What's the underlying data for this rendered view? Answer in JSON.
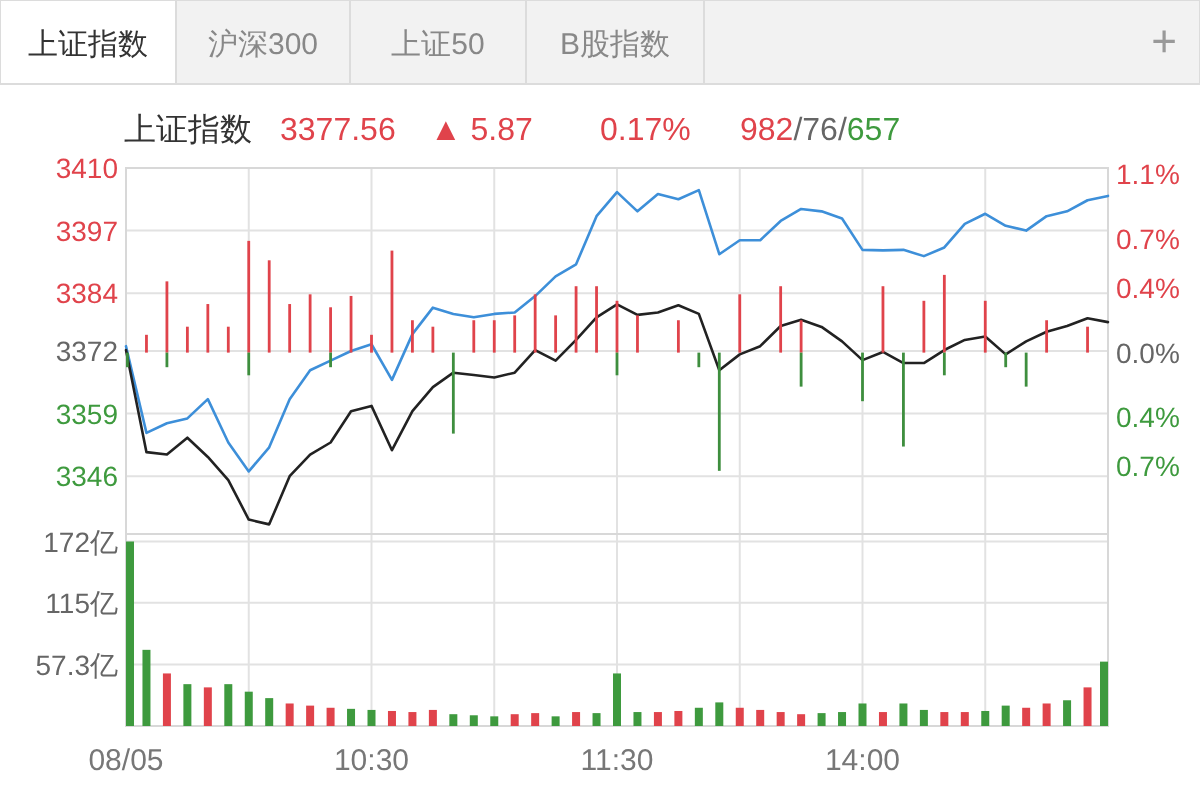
{
  "chart_data": [
    {
      "type": "line",
      "title": "上证指数",
      "annotations": [
        "上证指数",
        "沪深300",
        "上证50",
        "B股指数",
        "+",
        "3377.56",
        "▲ 5.87",
        "0.17%",
        "982/76/657"
      ],
      "categories": [
        null,
        null,
        null,
        null,
        null,
        null,
        null,
        null,
        null,
        null,
        null,
        null,
        null,
        null,
        null,
        null,
        null,
        null,
        null,
        null,
        null,
        null,
        null,
        null,
        null,
        null,
        null,
        null,
        null,
        null,
        null,
        null,
        null,
        null,
        null,
        null,
        null,
        null,
        null,
        null,
        null,
        null,
        null,
        null,
        null,
        null,
        null,
        null,
        null
      ],
      "ylim": [
        3334,
        3410
      ],
      "yticks": [
        3410,
        3397,
        3384,
        3372,
        3359,
        3346
      ],
      "y2lim": [
        -1.12,
        1.14
      ],
      "y2ticks": [
        {
          "value": 1.1,
          "label": "1.1%"
        },
        {
          "value": 0.7,
          "label": "0.7%"
        },
        {
          "value": 0.4,
          "label": "0.4%"
        },
        {
          "value": 0,
          "label": "0.0%"
        },
        {
          "value": -0.4,
          "label": "0.4%"
        },
        {
          "value": -0.7,
          "label": "0.7%"
        }
      ],
      "grid": true,
      "tick_labels": "y",
      "series": [
        {
          "type": "bar",
          "axis": "y2",
          "color": "#e0434b",
          "values": [
            null,
            0.11,
            0.44,
            0.16,
            0.3,
            0.16,
            0.69,
            0.57,
            0.3,
            0.36,
            0.28,
            0.35,
            0.11,
            0.63,
            0.2,
            0.16,
            null,
            0.2,
            0.2,
            0.23,
            0.36,
            0.23,
            0.41,
            0.41,
            0.32,
            0.23,
            null,
            0.2,
            null,
            null,
            0.36,
            null,
            0.41,
            0.2,
            null,
            null,
            null,
            0.41,
            null,
            0.32,
            0.48,
            null,
            0.32,
            null,
            null,
            0.2,
            null,
            0.16,
            null
          ]
        },
        {
          "type": "bar",
          "axis": "y2",
          "color": "#3e8e3e",
          "values": [
            -0.09,
            null,
            -0.09,
            null,
            null,
            null,
            -0.14,
            null,
            null,
            null,
            -0.09,
            null,
            null,
            null,
            null,
            null,
            -0.5,
            null,
            null,
            null,
            null,
            null,
            null,
            null,
            -0.14,
            null,
            null,
            null,
            -0.09,
            -0.73,
            null,
            null,
            null,
            -0.21,
            null,
            null,
            -0.3,
            null,
            -0.58,
            null,
            -0.14,
            null,
            null,
            -0.09,
            -0.21,
            null,
            null,
            null,
            null
          ]
        },
        {
          "color": "#3d8fd9",
          "values": [
            3373,
            3355,
            3357,
            3358,
            3362,
            3353,
            3347,
            3352,
            3362,
            3368,
            3370,
            3372,
            3373.4,
            3366,
            3375.5,
            3381,
            3379.7,
            3379,
            3379.7,
            3380,
            3383.4,
            3387.5,
            3390,
            3400,
            3405,
            3401,
            3404.6,
            3403.5,
            3405.4,
            3392.1,
            3395,
            3395,
            3399,
            3401.5,
            3401,
            3399.5,
            3393,
            3392.9,
            3393,
            3391.7,
            3393.5,
            3398.4,
            3400.5,
            3398,
            3397,
            3400,
            3401,
            3403.3,
            3404.2
          ]
        },
        {
          "color": "#222222",
          "values": [
            3372.2,
            3351,
            3350.5,
            3354,
            3350,
            3345.2,
            3337,
            3336,
            3346,
            3350.5,
            3353,
            3359.5,
            3360.6,
            3351.4,
            3359.5,
            3364.5,
            3367.5,
            3367,
            3366.5,
            3367.5,
            3372.2,
            3370,
            3374.3,
            3379,
            3381.7,
            3379.5,
            3380,
            3381.5,
            3379.7,
            3368,
            3371.3,
            3373,
            3377.2,
            3378.5,
            3377,
            3374,
            3370.1,
            3371.8,
            3369.5,
            3369.5,
            3372.2,
            3374.3,
            3375,
            3371.3,
            3374,
            3376,
            3377.2,
            3378.8,
            3378
          ]
        }
      ]
    },
    {
      "type": "bar",
      "categories": [
        "08/05",
        null,
        null,
        null,
        null,
        null,
        null,
        null,
        null,
        null,
        null,
        null,
        "10:30",
        null,
        null,
        null,
        null,
        null,
        null,
        null,
        null,
        null,
        null,
        null,
        "11:30",
        null,
        null,
        null,
        null,
        null,
        null,
        null,
        null,
        null,
        null,
        null,
        "14:00",
        null,
        null,
        null,
        null,
        null,
        null,
        null,
        null,
        null,
        null,
        null,
        null
      ],
      "ylim": [
        0,
        179
      ],
      "yticks": [
        {
          "value": 57.3,
          "label": "57.3亿"
        },
        {
          "value": 115,
          "label": "115亿"
        },
        {
          "value": 172,
          "label": "172亿"
        }
      ],
      "grid": true,
      "series": [
        {
          "color": "#3e9a3e",
          "values": [
            172,
            71,
            null,
            39,
            null,
            39,
            32,
            26,
            null,
            null,
            null,
            16,
            15,
            null,
            null,
            null,
            11,
            10,
            9,
            null,
            null,
            9,
            null,
            12,
            49,
            13,
            null,
            null,
            17,
            22,
            null,
            null,
            null,
            null,
            12,
            13,
            21,
            null,
            21,
            15,
            null,
            null,
            14,
            19,
            null,
            null,
            24,
            null,
            60
          ]
        },
        {
          "color": "#e0434b",
          "values": [
            null,
            null,
            49,
            null,
            36,
            null,
            null,
            null,
            21,
            19,
            17,
            null,
            null,
            14,
            13,
            15,
            null,
            null,
            null,
            11,
            12,
            null,
            13,
            null,
            null,
            null,
            13,
            14,
            null,
            null,
            17,
            15,
            13,
            11,
            null,
            null,
            null,
            13,
            null,
            null,
            13,
            13,
            null,
            null,
            17,
            21,
            null,
            36,
            null
          ]
        }
      ]
    }
  ]
}
